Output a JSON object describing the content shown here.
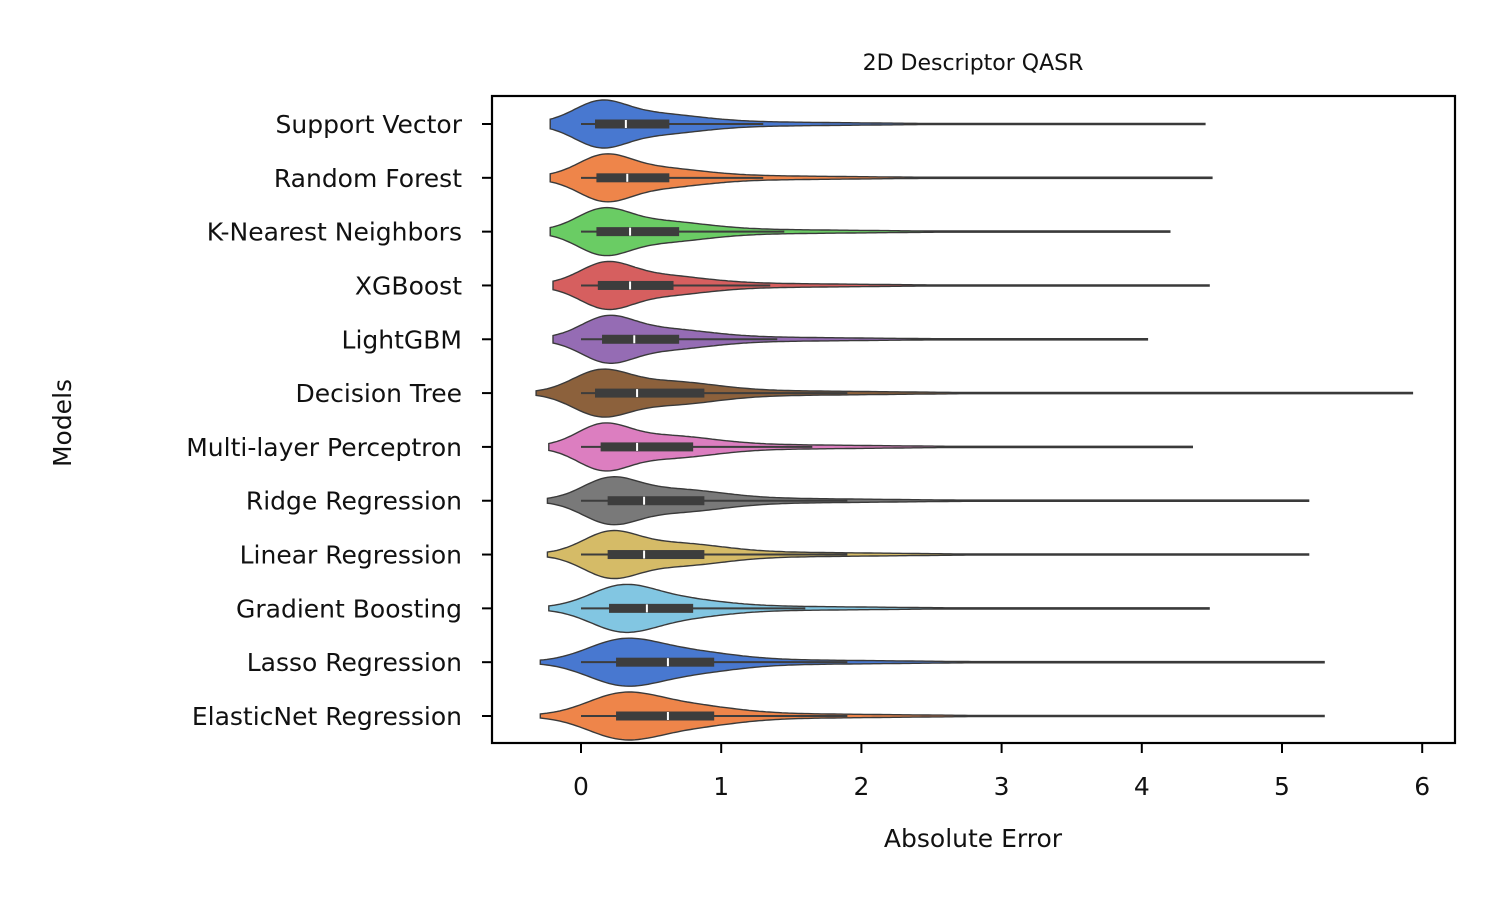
{
  "chart_data": {
    "type": "violin",
    "title": "2D Descriptor QASR",
    "xlabel": "Absolute Error",
    "ylabel": "Models",
    "xlim": [
      -0.63,
      6.23
    ],
    "xticks": [
      0,
      1,
      2,
      3,
      4,
      5,
      6
    ],
    "grid": false,
    "legend": "none",
    "series": [
      {
        "name": "Support Vector",
        "color": "#4878d0",
        "q1": 0.1,
        "median": 0.32,
        "q3": 0.63,
        "whisker_low": 0.0,
        "whisker_high": 1.3,
        "min": -0.22,
        "max": 4.45,
        "peak": 0.13
      },
      {
        "name": "Random Forest",
        "color": "#ee854a",
        "q1": 0.11,
        "median": 0.33,
        "q3": 0.63,
        "whisker_low": 0.0,
        "whisker_high": 1.3,
        "min": -0.22,
        "max": 4.5,
        "peak": 0.16
      },
      {
        "name": "K-Nearest Neighbors",
        "color": "#6acc64",
        "q1": 0.11,
        "median": 0.35,
        "q3": 0.7,
        "whisker_low": 0.0,
        "whisker_high": 1.45,
        "min": -0.22,
        "max": 4.2,
        "peak": 0.15
      },
      {
        "name": "XGBoost",
        "color": "#d65f5f",
        "q1": 0.12,
        "median": 0.35,
        "q3": 0.66,
        "whisker_low": 0.0,
        "whisker_high": 1.35,
        "min": -0.2,
        "max": 4.48,
        "peak": 0.17
      },
      {
        "name": "LightGBM",
        "color": "#956cb4",
        "q1": 0.15,
        "median": 0.38,
        "q3": 0.7,
        "whisker_low": 0.0,
        "whisker_high": 1.4,
        "min": -0.2,
        "max": 4.04,
        "peak": 0.18
      },
      {
        "name": "Decision Tree",
        "color": "#8c613c",
        "q1": 0.1,
        "median": 0.4,
        "q3": 0.88,
        "whisker_low": 0.0,
        "whisker_high": 1.9,
        "min": -0.32,
        "max": 5.93,
        "peak": 0.13
      },
      {
        "name": "Multi-layer Perceptron",
        "color": "#dc7ec0",
        "q1": 0.14,
        "median": 0.4,
        "q3": 0.8,
        "whisker_low": 0.0,
        "whisker_high": 1.65,
        "min": -0.23,
        "max": 4.36,
        "peak": 0.15
      },
      {
        "name": "Ridge Regression",
        "color": "#797979",
        "q1": 0.19,
        "median": 0.45,
        "q3": 0.88,
        "whisker_low": 0.0,
        "whisker_high": 1.9,
        "min": -0.24,
        "max": 5.19,
        "peak": 0.2
      },
      {
        "name": "Linear Regression",
        "color": "#d5bb67",
        "q1": 0.19,
        "median": 0.45,
        "q3": 0.88,
        "whisker_low": 0.0,
        "whisker_high": 1.9,
        "min": -0.24,
        "max": 5.19,
        "peak": 0.2
      },
      {
        "name": "Gradient Boosting",
        "color": "#82c6e2",
        "q1": 0.2,
        "median": 0.47,
        "q3": 0.8,
        "whisker_low": 0.0,
        "whisker_high": 1.6,
        "min": -0.23,
        "max": 4.48,
        "peak": 0.28
      },
      {
        "name": "Lasso Regression",
        "color": "#4878d0",
        "q1": 0.25,
        "median": 0.62,
        "q3": 0.95,
        "whisker_low": 0.0,
        "whisker_high": 1.9,
        "min": -0.29,
        "max": 5.3,
        "peak": 0.28
      },
      {
        "name": "ElasticNet Regression",
        "color": "#ee854a",
        "q1": 0.25,
        "median": 0.62,
        "q3": 0.95,
        "whisker_low": 0.0,
        "whisker_high": 1.9,
        "min": -0.29,
        "max": 5.3,
        "peak": 0.28
      }
    ]
  }
}
